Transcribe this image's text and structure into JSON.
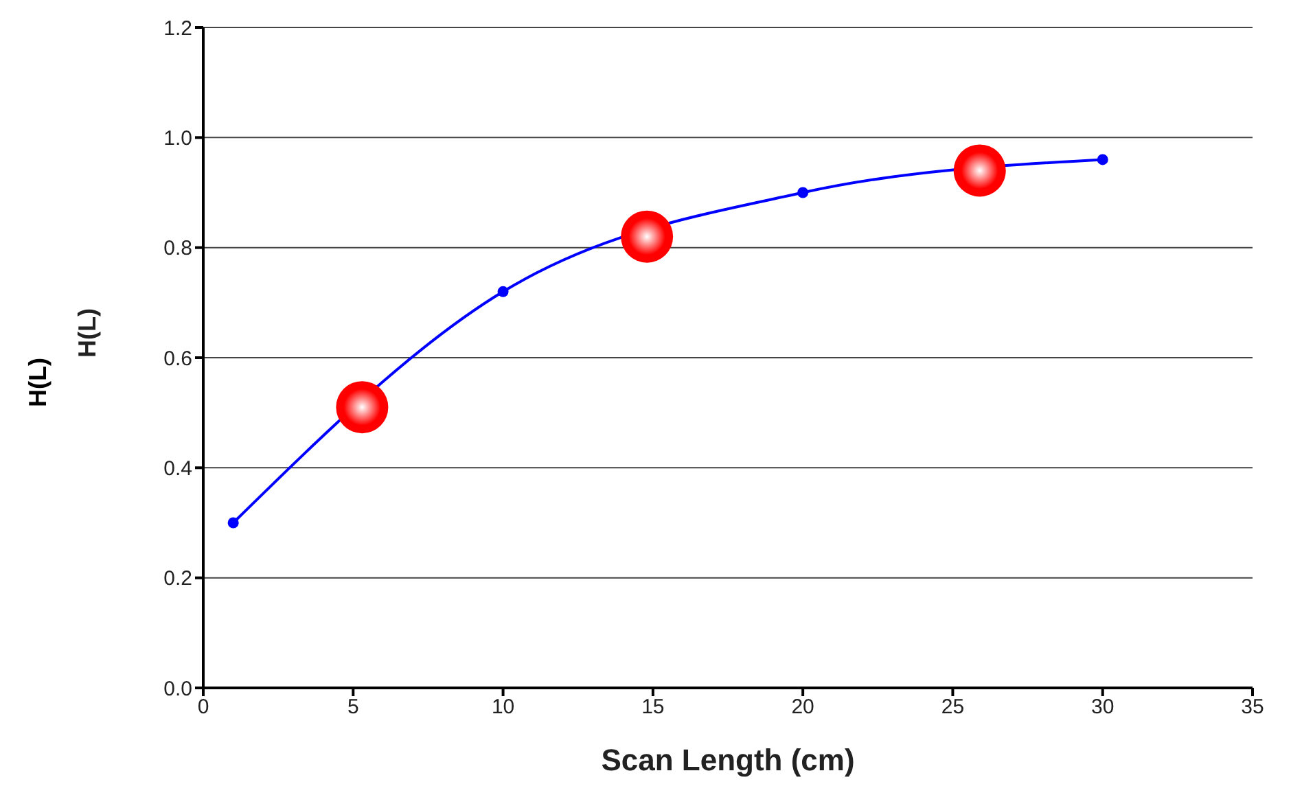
{
  "chart_data": {
    "type": "line",
    "xlabel": "Scan Length (cm)",
    "ylabel": "H(L)",
    "annotations": [
      "H(L)"
    ],
    "xlim": [
      0,
      35
    ],
    "xticks": [
      0,
      5,
      10,
      15,
      20,
      25,
      30,
      35
    ],
    "ylim": [
      0,
      1.2
    ],
    "yticks": [
      {
        "value": 0,
        "label": "0.0"
      },
      0.2,
      0.4,
      0.6,
      0.8,
      {
        "value": 1,
        "label": "1.0"
      },
      1.2
    ],
    "grid": "y",
    "legend": false,
    "series": [
      {
        "color": "#0000ff",
        "marker": "circle",
        "x": [
          1,
          5,
          10,
          15,
          20,
          25,
          30
        ],
        "values": [
          0.3,
          null,
          0.72,
          null,
          0.9,
          null,
          0.96
        ]
      },
      {
        "type": "scatter",
        "color": "#ff0000",
        "marker": "circle",
        "x": [
          5.3,
          14.8,
          25.9
        ],
        "values": [
          0.51,
          0.82,
          0.94
        ]
      }
    ]
  }
}
